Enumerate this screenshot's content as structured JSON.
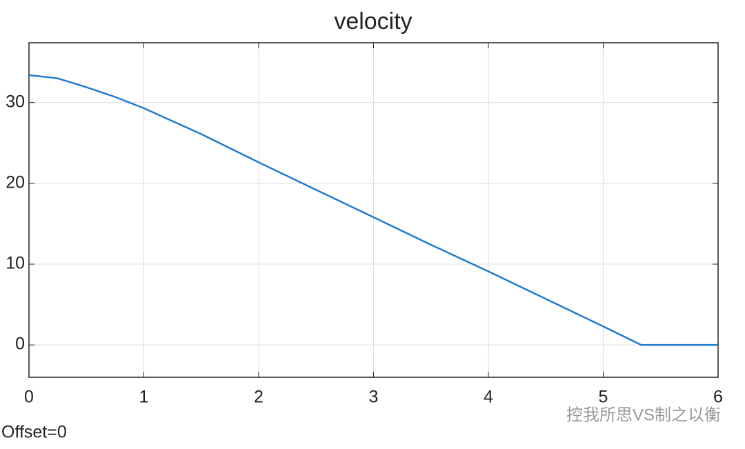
{
  "chart_data": {
    "type": "line",
    "title": "velocity",
    "x": [
      0,
      0.25,
      0.5,
      0.75,
      1,
      1.5,
      2,
      2.5,
      3,
      3.5,
      4,
      4.5,
      5,
      5.33,
      6
    ],
    "series": [
      {
        "name": "velocity",
        "color": "#1f7bd0",
        "values": [
          33.4,
          33.0,
          31.9,
          30.7,
          29.3,
          26.1,
          22.6,
          19.2,
          15.8,
          12.4,
          9.1,
          5.7,
          2.3,
          0,
          0
        ]
      }
    ],
    "xlim": [
      0,
      6
    ],
    "xticks": [
      0,
      1,
      2,
      3,
      4,
      5,
      6
    ],
    "ylim": [
      -4,
      37.4
    ],
    "yticks": [
      0,
      10,
      20,
      30
    ],
    "grid": true,
    "annotation": "Offset=0",
    "watermark": "控我所思VS制之以衡"
  }
}
